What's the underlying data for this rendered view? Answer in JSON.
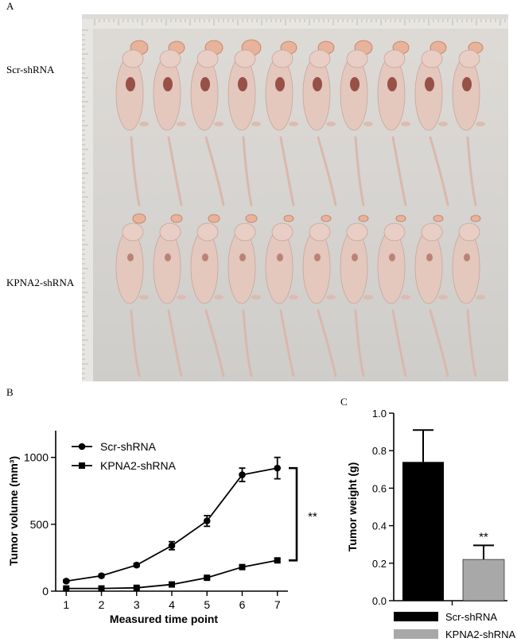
{
  "figure": {
    "panel_a_letter": "A",
    "panel_b_letter": "B",
    "panel_c_letter": "C",
    "photo_rows": [
      "Scr-shRNA",
      "KPNA2-shRNA"
    ]
  },
  "chart_data": [
    {
      "type": "line",
      "panel": "B",
      "xlabel": "Measured time point",
      "ylabel": "Tumor volume (mm³)",
      "x": [
        1,
        2,
        3,
        4,
        5,
        6,
        7
      ],
      "xlim": [
        0.7,
        7.3
      ],
      "ylim": [
        0,
        1200
      ],
      "yticks": [
        0,
        500,
        1000
      ],
      "xticks": [
        1,
        2,
        3,
        4,
        5,
        6,
        7
      ],
      "grid": false,
      "legend": "top-left",
      "significance": "**",
      "series": [
        {
          "name": "Scr-shRNA",
          "marker": "circle",
          "values": [
            75,
            115,
            195,
            340,
            525,
            870,
            920
          ],
          "errors": [
            10,
            10,
            12,
            30,
            40,
            50,
            80
          ]
        },
        {
          "name": "KPNA2-shRNA",
          "marker": "square",
          "values": [
            20,
            20,
            25,
            50,
            100,
            180,
            230
          ],
          "errors": [
            3,
            3,
            3,
            5,
            8,
            10,
            12
          ]
        }
      ]
    },
    {
      "type": "bar",
      "panel": "C",
      "ylabel": "Tumor weight (g)",
      "categories": [
        "Scr-shRNA",
        "KPNA2-shRNA"
      ],
      "values": [
        0.74,
        0.22
      ],
      "errors": [
        0.17,
        0.075
      ],
      "colors": [
        "#000000",
        "#a8a8a8"
      ],
      "ylim": [
        0,
        1.0
      ],
      "yticks": [
        "0.0",
        "0.2",
        "0.4",
        "0.6",
        "0.8",
        "1.0"
      ],
      "grid": false,
      "legend": "bottom",
      "significance": "**"
    }
  ]
}
